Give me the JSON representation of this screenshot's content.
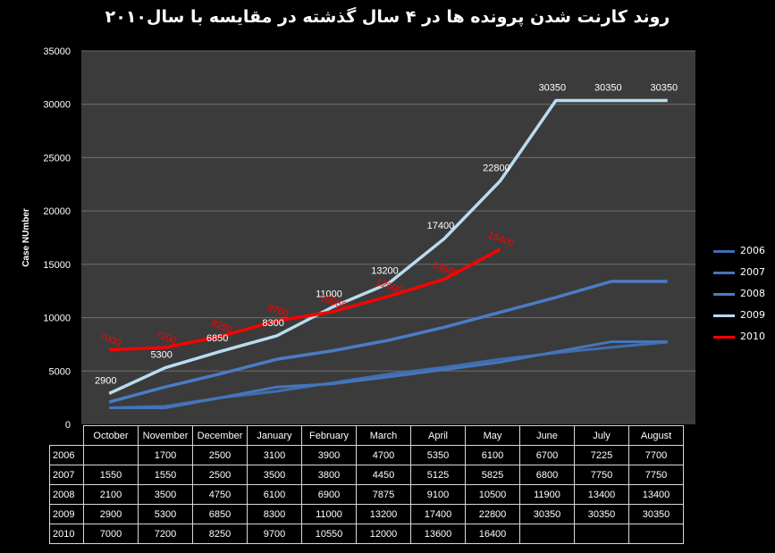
{
  "title": "روند کارنت شدن پرونده ها در ۴ سال گذشته در مقایسه با سال۲۰۱۰",
  "colors": {
    "background": "#000000",
    "plot_area": "#3b3b3b",
    "grid": "#6e6e6e",
    "s2006": "#3f6db0",
    "s2007": "#4675bb",
    "s2008": "#4b7cc4",
    "s2009": "#b9dcef",
    "s2010": "#ff0000"
  },
  "chart_data": {
    "type": "line",
    "title": "روند کارنت شدن پرونده ها در ۴ سال گذشته در مقایسه با سال۲۰۱۰",
    "xlabel": "",
    "ylabel": "Case NUmber",
    "ylim": [
      0,
      35000
    ],
    "yticks": [
      "0",
      "5000",
      "10000",
      "15000",
      "20000",
      "25000",
      "30000",
      "35000"
    ],
    "grid": true,
    "legend_position": "right",
    "categories": [
      "October",
      "November",
      "December",
      "January",
      "February",
      "March",
      "April",
      "May",
      "June",
      "July",
      "August"
    ],
    "series": [
      {
        "name": "2006",
        "values": [
          1550,
          1700,
          2500,
          3100,
          3900,
          4700,
          5350,
          6100,
          6700,
          7225,
          7700
        ],
        "show_labels": false
      },
      {
        "name": "2007",
        "values": [
          1550,
          1550,
          2500,
          3500,
          3800,
          4450,
          5125,
          5825,
          6800,
          7750,
          7750
        ],
        "show_labels": false
      },
      {
        "name": "2008",
        "values": [
          2100,
          3500,
          4750,
          6100,
          6900,
          7875,
          9100,
          10500,
          11900,
          13400,
          13400
        ],
        "show_labels": false
      },
      {
        "name": "2009",
        "values": [
          2900,
          5300,
          6850,
          8300,
          11000,
          13200,
          17400,
          22800,
          30350,
          30350,
          30350
        ],
        "show_labels": true
      },
      {
        "name": "2010",
        "values": [
          7000,
          7200,
          8250,
          9700,
          10550,
          12000,
          13600,
          16400,
          null,
          null,
          null
        ],
        "show_labels": true
      }
    ]
  },
  "table": {
    "rows": [
      {
        "label": "2006",
        "cells": [
          "",
          "1700",
          "2500",
          "3100",
          "3900",
          "4700",
          "5350",
          "6100",
          "6700",
          "7225",
          "7700"
        ]
      },
      {
        "label": "2007",
        "cells": [
          "1550",
          "1550",
          "2500",
          "3500",
          "3800",
          "4450",
          "5125",
          "5825",
          "6800",
          "7750",
          "7750"
        ]
      },
      {
        "label": "2008",
        "cells": [
          "2100",
          "3500",
          "4750",
          "6100",
          "6900",
          "7875",
          "9100",
          "10500",
          "11900",
          "13400",
          "13400"
        ]
      },
      {
        "label": "2009",
        "cells": [
          "2900",
          "5300",
          "6850",
          "8300",
          "11000",
          "13200",
          "17400",
          "22800",
          "30350",
          "30350",
          "30350"
        ]
      },
      {
        "label": "2010",
        "cells": [
          "7000",
          "7200",
          "8250",
          "9700",
          "10550",
          "12000",
          "13600",
          "16400",
          "",
          "",
          ""
        ]
      }
    ]
  }
}
